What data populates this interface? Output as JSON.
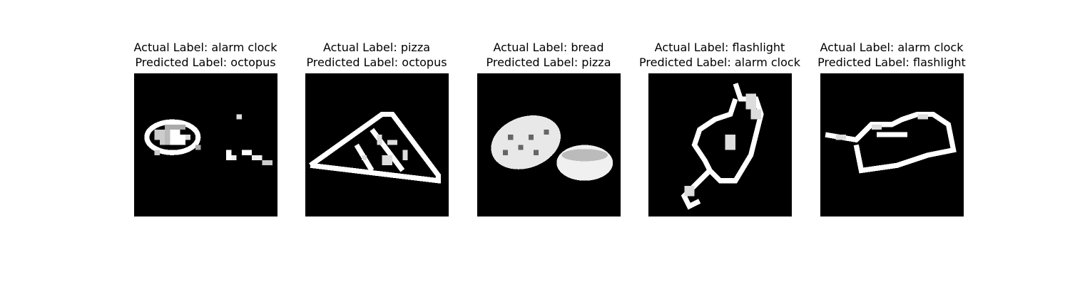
{
  "panels": [
    {
      "actual_text": "Actual Label: alarm clock",
      "predicted_text": "Predicted Label: octopus",
      "image_subject": "alarm-clock-doodle"
    },
    {
      "actual_text": "Actual Label: pizza",
      "predicted_text": "Predicted Label: octopus",
      "image_subject": "pizza-doodle"
    },
    {
      "actual_text": "Actual Label: bread",
      "predicted_text": "Predicted Label: pizza",
      "image_subject": "bread-doodle"
    },
    {
      "actual_text": "Actual Label: flashlight",
      "predicted_text": "Predicted Label: alarm clock",
      "image_subject": "flashlight-doodle"
    },
    {
      "actual_text": "Actual Label: alarm clock",
      "predicted_text": "Predicted Label: flashlight",
      "image_subject": "alarm-clock-doodle"
    }
  ]
}
